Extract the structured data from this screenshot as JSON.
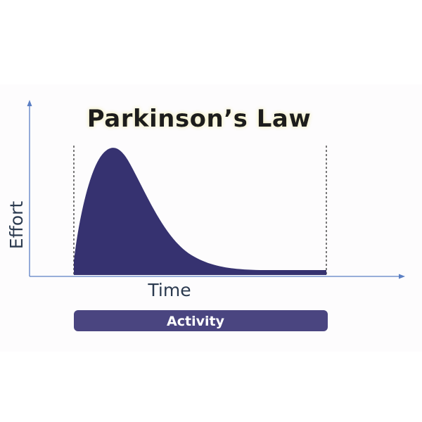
{
  "title": "Parkinson’s Law",
  "y_axis_label": "Effort",
  "x_axis_label": "Time",
  "activity_label": "Activity",
  "colors": {
    "curve_fill": "#363270",
    "activity_bar": "#4a4580",
    "axis": "#5b7fc4",
    "label_text": "#2b3a4f",
    "title_text": "#1a1a1a",
    "title_glow": "#f3f0c8",
    "boundary_line": "#222222",
    "panel_bg": "#fdfcfd"
  },
  "icons": {
    "y_axis_arrow": "arrow-up-icon",
    "x_axis_arrow": "arrow-right-icon"
  }
}
